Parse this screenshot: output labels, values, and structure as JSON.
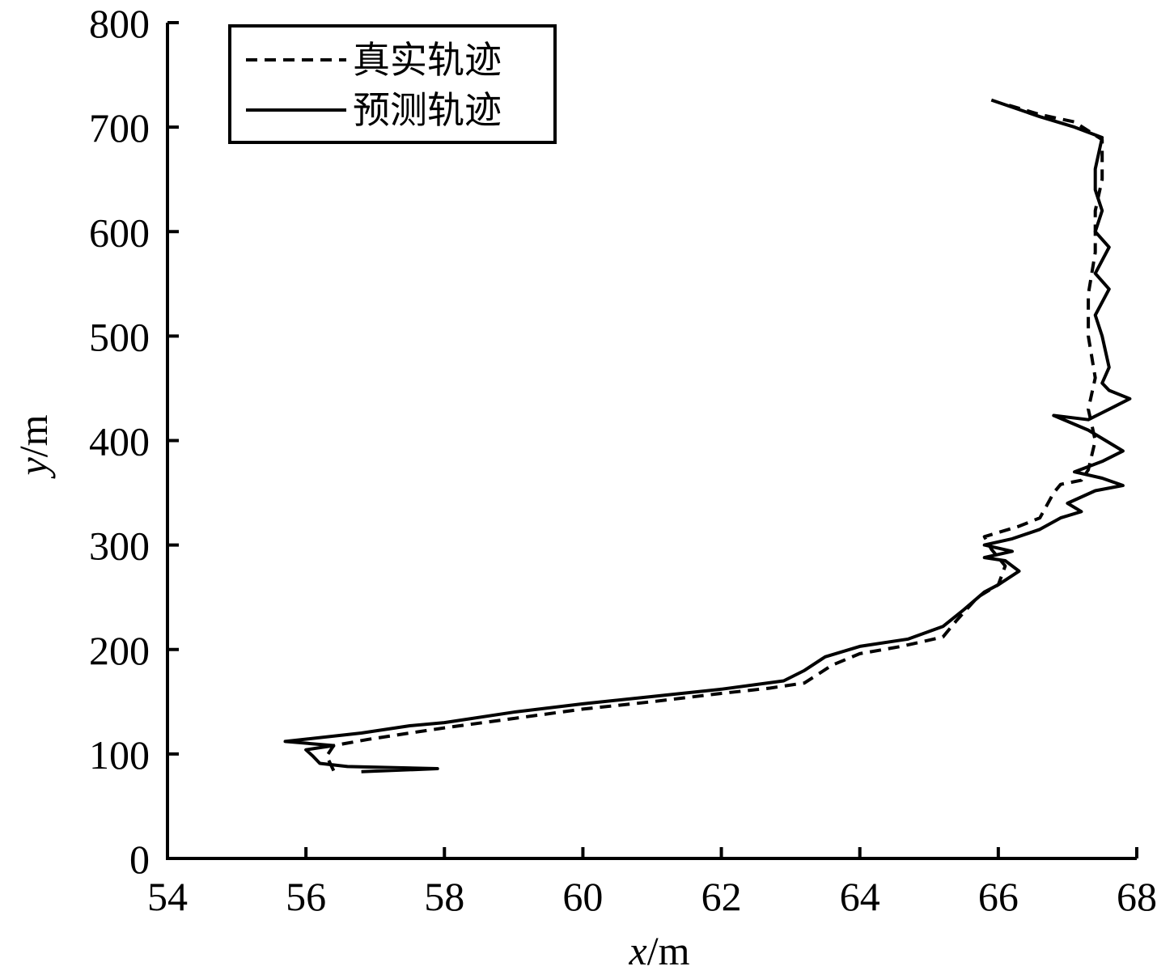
{
  "chart_data": {
    "type": "line",
    "title": "",
    "xlabel": {
      "var": "x",
      "unit": "/m"
    },
    "ylabel": {
      "var": "y",
      "unit": "/m"
    },
    "xlim": [
      54,
      68
    ],
    "ylim": [
      0,
      800
    ],
    "xticks": [
      54,
      56,
      58,
      60,
      62,
      64,
      66,
      68
    ],
    "yticks": [
      0,
      100,
      200,
      300,
      400,
      500,
      600,
      700,
      800
    ],
    "grid": false,
    "legend_position": "top-left",
    "series": [
      {
        "name": "真实轨迹",
        "style": "dashed",
        "color": "#000000",
        "points": [
          [
            56.4,
            84
          ],
          [
            56.3,
            98
          ],
          [
            56.4,
            108
          ],
          [
            56.9,
            114
          ],
          [
            57.5,
            120
          ],
          [
            58.0,
            125
          ],
          [
            59.0,
            134
          ],
          [
            60.0,
            143
          ],
          [
            61.0,
            150
          ],
          [
            62.0,
            158
          ],
          [
            62.7,
            163
          ],
          [
            63.2,
            168
          ],
          [
            63.6,
            185
          ],
          [
            64.0,
            196
          ],
          [
            64.6,
            203
          ],
          [
            65.2,
            212
          ],
          [
            65.4,
            228
          ],
          [
            65.7,
            250
          ],
          [
            66.0,
            262
          ],
          [
            66.1,
            280
          ],
          [
            65.9,
            296
          ],
          [
            65.8,
            308
          ],
          [
            66.3,
            318
          ],
          [
            66.6,
            326
          ],
          [
            66.7,
            338
          ],
          [
            66.8,
            350
          ],
          [
            66.9,
            358
          ],
          [
            67.2,
            362
          ],
          [
            67.3,
            372
          ],
          [
            67.4,
            400
          ],
          [
            67.3,
            430
          ],
          [
            67.4,
            460
          ],
          [
            67.3,
            500
          ],
          [
            67.3,
            540
          ],
          [
            67.4,
            580
          ],
          [
            67.4,
            620
          ],
          [
            67.5,
            650
          ],
          [
            67.5,
            670
          ],
          [
            67.5,
            688
          ],
          [
            67.1,
            705
          ],
          [
            66.6,
            712
          ],
          [
            66.1,
            722
          ]
        ]
      },
      {
        "name": "预测轨迹",
        "style": "solid",
        "color": "#000000",
        "points": [
          [
            56.8,
            83
          ],
          [
            57.9,
            86
          ],
          [
            56.6,
            88
          ],
          [
            56.2,
            91
          ],
          [
            56.1,
            98
          ],
          [
            56.0,
            104
          ],
          [
            56.4,
            108
          ],
          [
            55.7,
            112
          ],
          [
            56.8,
            120
          ],
          [
            57.5,
            127
          ],
          [
            58.0,
            130
          ],
          [
            59.0,
            140
          ],
          [
            60.0,
            148
          ],
          [
            61.0,
            155
          ],
          [
            62.0,
            162
          ],
          [
            62.9,
            170
          ],
          [
            63.2,
            180
          ],
          [
            63.5,
            193
          ],
          [
            64.0,
            203
          ],
          [
            64.7,
            210
          ],
          [
            65.2,
            222
          ],
          [
            65.5,
            238
          ],
          [
            65.8,
            255
          ],
          [
            66.0,
            262
          ],
          [
            66.3,
            275
          ],
          [
            66.1,
            285
          ],
          [
            65.8,
            288
          ],
          [
            66.2,
            294
          ],
          [
            65.8,
            300
          ],
          [
            66.2,
            306
          ],
          [
            66.6,
            315
          ],
          [
            66.9,
            326
          ],
          [
            67.2,
            332
          ],
          [
            67.0,
            340
          ],
          [
            67.4,
            352
          ],
          [
            67.8,
            357
          ],
          [
            67.5,
            364
          ],
          [
            67.1,
            370
          ],
          [
            67.5,
            380
          ],
          [
            67.8,
            390
          ],
          [
            67.3,
            410
          ],
          [
            66.8,
            424
          ],
          [
            67.3,
            420
          ],
          [
            67.6,
            430
          ],
          [
            67.9,
            440
          ],
          [
            67.6,
            448
          ],
          [
            67.5,
            455
          ],
          [
            67.6,
            470
          ],
          [
            67.5,
            500
          ],
          [
            67.4,
            520
          ],
          [
            67.6,
            545
          ],
          [
            67.4,
            560
          ],
          [
            67.6,
            585
          ],
          [
            67.4,
            600
          ],
          [
            67.5,
            620
          ],
          [
            67.4,
            640
          ],
          [
            67.4,
            660
          ],
          [
            67.5,
            690
          ],
          [
            67.1,
            700
          ],
          [
            66.6,
            710
          ],
          [
            65.9,
            726
          ]
        ]
      }
    ]
  }
}
